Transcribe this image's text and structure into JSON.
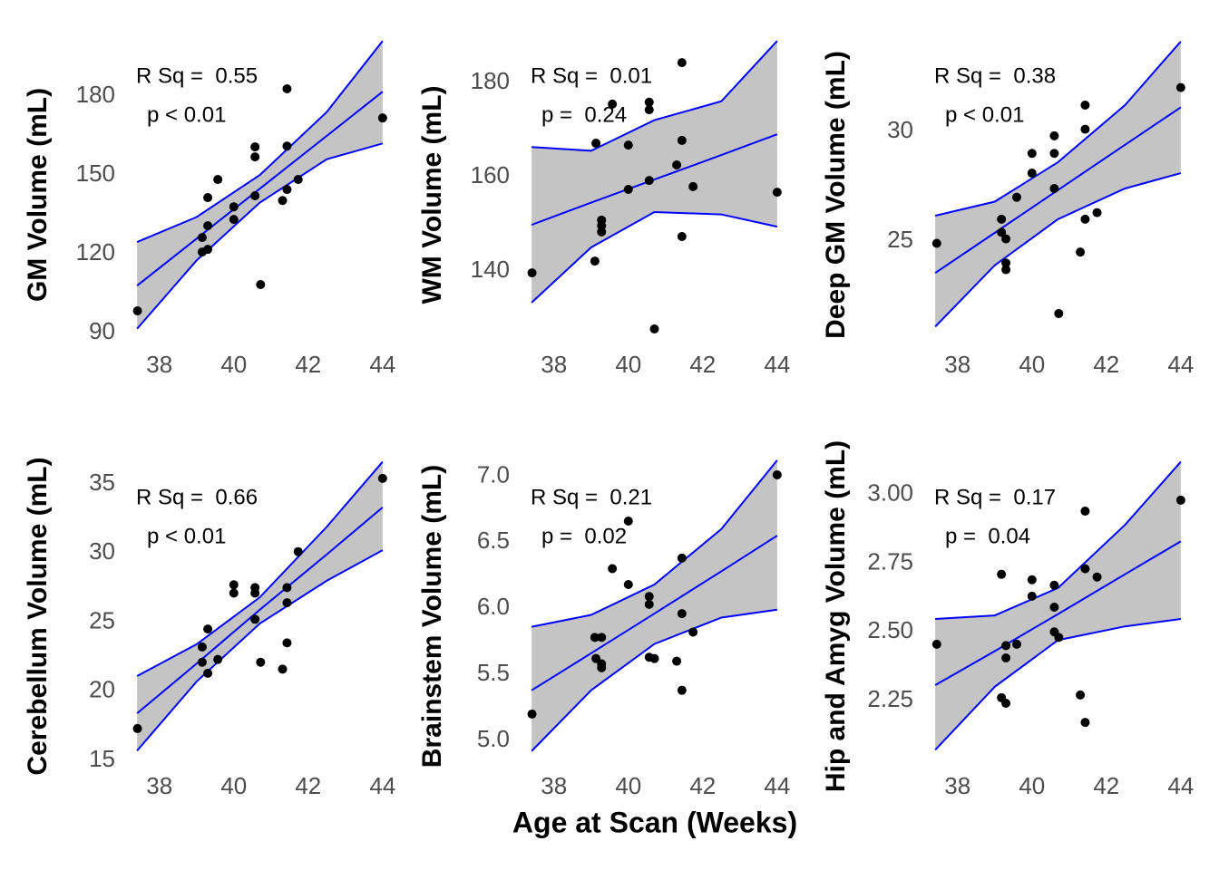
{
  "xlabel": "Age at Scan (Weeks)",
  "chart_data": [
    {
      "type": "scatter",
      "ylabel": "GM Volume (mL)",
      "annotations": [
        "R Sq =  0.55",
        "p < 0.01"
      ],
      "x": [
        37.41,
        39.15,
        39.15,
        39.3,
        39.3,
        39.3,
        39.57,
        40.0,
        40.0,
        40.57,
        40.57,
        40.57,
        40.72,
        41.31,
        41.43,
        41.43,
        41.43,
        41.73,
        44.0
      ],
      "y": [
        98.3,
        126.2,
        120.7,
        130.7,
        141.4,
        121.7,
        148.3,
        137.9,
        133.1,
        160.7,
        156.9,
        142.1,
        108.3,
        140.3,
        182.8,
        161.0,
        144.5,
        148.3,
        171.7
      ],
      "color": "#000000",
      "xlim": [
        37.25,
        44.15
      ],
      "ylim": [
        82.1,
        202.8
      ],
      "xticks": [
        38,
        40,
        42,
        44
      ],
      "yticks": [
        90,
        120,
        150,
        180
      ],
      "fit": {
        "x": [
          37.4,
          39,
          40.7,
          42.5,
          44
        ],
        "fit": [
          107.9,
          125.8,
          144.8,
          164.9,
          181.7
        ],
        "lower": [
          91.5,
          117.5,
          139.5,
          156,
          162
        ],
        "upper": [
          124.5,
          134,
          150,
          174,
          201
        ],
        "color": "#0000ff",
        "band_color": "#c4c4c4"
      }
    },
    {
      "type": "scatter",
      "ylabel": "WM Volume (mL)",
      "annotations": [
        "R Sq =  0.01",
        "p =  0.24"
      ],
      "x": [
        37.41,
        39.1,
        39.28,
        39.28,
        39.28,
        39.13,
        39.57,
        40.0,
        40.0,
        40.56,
        40.56,
        40.56,
        40.7,
        41.3,
        41.44,
        41.44,
        41.44,
        41.74,
        44.0
      ],
      "y": [
        139.6,
        142.1,
        150.8,
        149.6,
        148.3,
        167.1,
        175.4,
        166.7,
        157.3,
        175.8,
        174.2,
        159.2,
        127.7,
        162.5,
        184.2,
        167.7,
        147.3,
        157.9,
        156.7
      ],
      "color": "#000000",
      "xlim": [
        37.25,
        44.15
      ],
      "ylim": [
        122.5,
        189.8
      ],
      "xticks": [
        38,
        40,
        42,
        44
      ],
      "yticks": [
        140,
        160,
        180
      ],
      "fit": {
        "x": [
          37.4,
          39,
          40.7,
          42.5,
          44
        ],
        "fit": [
          149.8,
          154.5,
          159.4,
          164.6,
          169
        ],
        "lower": [
          133.3,
          145,
          152.5,
          152,
          149.4
        ],
        "upper": [
          166.3,
          165.5,
          172,
          176,
          188.8
        ],
        "color": "#0000ff",
        "band_color": "#c4c4c4"
      }
    },
    {
      "type": "scatter",
      "ylabel": "Deep GM Volume (mL)",
      "annotations": [
        "R Sq =  0.38",
        "p < 0.01"
      ],
      "x": [
        37.44,
        39.18,
        39.18,
        39.3,
        39.3,
        39.3,
        39.59,
        40.0,
        40.0,
        40.6,
        40.6,
        40.6,
        40.72,
        41.3,
        41.43,
        41.43,
        41.43,
        41.75,
        44.0
      ],
      "y": [
        24.9,
        26.0,
        25.4,
        25.1,
        24.0,
        23.7,
        27.0,
        29.0,
        28.1,
        29.8,
        29.0,
        27.4,
        21.7,
        24.5,
        31.2,
        30.1,
        26.0,
        26.3,
        32.0
      ],
      "color": "#000000",
      "xlim": [
        37.25,
        44.15
      ],
      "ylim": [
        19.88,
        34.34
      ],
      "xticks": [
        38,
        40,
        42,
        44
      ],
      "yticks": [
        25,
        30
      ],
      "fit": {
        "x": [
          37.4,
          39,
          40.7,
          42.5,
          44
        ],
        "fit": [
          23.55,
          25.38,
          27.33,
          29.39,
          31.1
        ],
        "lower": [
          21.1,
          23.9,
          26.0,
          27.4,
          28.1
        ],
        "upper": [
          26.16,
          26.8,
          28.6,
          31.2,
          34.1
        ],
        "color": "#0000ff",
        "band_color": "#c4c4c4"
      }
    },
    {
      "type": "scatter",
      "ylabel": "Cerebellum Volume (mL)",
      "annotations": [
        "R Sq =  0.66",
        "p < 0.01"
      ],
      "x": [
        37.41,
        39.15,
        39.15,
        39.3,
        39.3,
        39.57,
        40.0,
        40.0,
        40.57,
        40.57,
        40.57,
        40.72,
        41.31,
        41.43,
        41.43,
        41.43,
        41.73,
        44.0
      ],
      "y": [
        17.3,
        23.2,
        22.1,
        24.5,
        21.3,
        22.3,
        27.7,
        27.1,
        27.5,
        27.1,
        25.2,
        22.1,
        21.6,
        27.5,
        26.4,
        23.5,
        30.1,
        35.4
      ],
      "color": "#000000",
      "xlim": [
        37.25,
        44.15
      ],
      "ylim": [
        13.95,
        36.9
      ],
      "xticks": [
        38,
        40,
        42,
        44
      ],
      "yticks": [
        15,
        20,
        25,
        30,
        35
      ],
      "fit": {
        "x": [
          37.4,
          39,
          40.7,
          42.5,
          44
        ],
        "fit": [
          18.4,
          22.0,
          25.9,
          29.9,
          33.3
        ],
        "lower": [
          15.7,
          20.7,
          24.9,
          28.0,
          30.2
        ],
        "upper": [
          21.1,
          23.4,
          26.8,
          31.9,
          36.6
        ],
        "color": "#0000ff",
        "band_color": "#c4c4c4"
      }
    },
    {
      "type": "scatter",
      "ylabel": "Brainstem Volume (mL)",
      "annotations": [
        "R Sq =  0.21",
        "p =  0.02"
      ],
      "x": [
        37.41,
        39.1,
        39.28,
        39.13,
        39.28,
        39.28,
        39.57,
        40.0,
        40.0,
        40.56,
        40.56,
        40.56,
        40.7,
        41.3,
        41.44,
        41.44,
        41.44,
        41.74,
        44.0
      ],
      "y": [
        5.2,
        5.78,
        5.78,
        5.62,
        5.58,
        5.55,
        6.3,
        6.66,
        6.18,
        6.09,
        6.03,
        5.63,
        5.62,
        5.6,
        6.38,
        5.96,
        5.38,
        5.82,
        7.01
      ],
      "color": "#000000",
      "xlim": [
        37.25,
        44.15
      ],
      "ylim": [
        4.74,
        7.14
      ],
      "xticks": [
        38,
        40,
        42,
        44
      ],
      "yticks": [
        {
          "value": 5,
          "label": "5.0"
        },
        5.5,
        {
          "value": 6,
          "label": "6.0"
        },
        6.5,
        {
          "value": 7,
          "label": "7.0"
        }
      ],
      "fit": {
        "x": [
          37.4,
          39,
          40.7,
          42.5,
          44
        ],
        "fit": [
          5.38,
          5.66,
          5.96,
          6.28,
          6.55
        ],
        "lower": [
          4.92,
          5.38,
          5.73,
          5.93,
          5.99
        ],
        "upper": [
          5.86,
          5.95,
          6.18,
          6.6,
          7.12
        ],
        "color": "#0000ff",
        "band_color": "#c4c4c4"
      }
    },
    {
      "type": "scatter",
      "ylabel": "Hip and Amyg Volume (mL)",
      "annotations": [
        "R Sq =  0.17",
        "p =  0.04"
      ],
      "x": [
        37.44,
        39.18,
        39.18,
        39.3,
        39.3,
        39.3,
        39.59,
        40.0,
        40.0,
        40.6,
        40.6,
        40.6,
        40.72,
        41.3,
        41.43,
        41.43,
        41.43,
        41.75,
        44.0
      ],
      "y": [
        2.455,
        2.71,
        2.26,
        2.24,
        2.45,
        2.405,
        2.455,
        2.69,
        2.63,
        2.67,
        2.59,
        2.5,
        2.48,
        2.27,
        2.94,
        2.73,
        2.17,
        2.7,
        2.98
      ],
      "color": "#000000",
      "xlim": [
        37.25,
        44.15
      ],
      "ylim": [
        1.979,
        3.135
      ],
      "xticks": [
        38,
        40,
        42,
        44
      ],
      "yticks": [
        2.25,
        {
          "value": 2.5,
          "label": "2.50"
        },
        2.75,
        {
          "value": 3,
          "label": "3.00"
        }
      ],
      "fit": {
        "x": [
          37.4,
          39,
          40.7,
          42.5,
          44
        ],
        "fit": [
          2.306,
          2.43,
          2.565,
          2.71,
          2.83
        ],
        "lower": [
          2.07,
          2.3,
          2.47,
          2.52,
          2.547
        ],
        "upper": [
          2.547,
          2.56,
          2.66,
          2.89,
          3.12
        ],
        "color": "#0000ff",
        "band_color": "#c4c4c4"
      }
    }
  ]
}
